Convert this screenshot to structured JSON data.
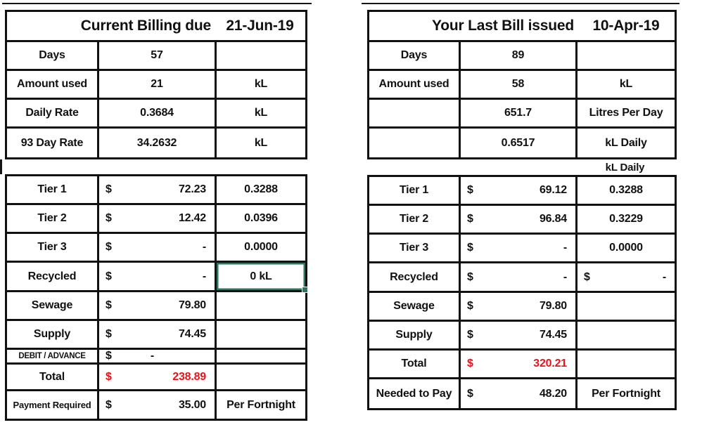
{
  "colors": {
    "text": "#111111",
    "red": "#e8131a",
    "selection_border": "#2f7360",
    "grid": "#111111"
  },
  "left_table": {
    "title": "Current Billing due",
    "date": "21-Jun-19",
    "info_rows": [
      {
        "label": "Days",
        "value": "57",
        "unit": ""
      },
      {
        "label": "Amount used",
        "value": "21",
        "unit": "kL"
      },
      {
        "label": "Daily Rate",
        "value": "0.3684",
        "unit": "kL"
      },
      {
        "label": "93 Day Rate",
        "value": "34.2632",
        "unit": "kL"
      }
    ],
    "charge_rows": [
      {
        "label": "Tier 1",
        "currency": "$",
        "amount": "72.23",
        "note": "0.3288"
      },
      {
        "label": "Tier 2",
        "currency": "$",
        "amount": "12.42",
        "note": "0.0396"
      },
      {
        "label": "Tier 3",
        "currency": "$",
        "amount": "-",
        "note": "0.0000"
      },
      {
        "label": "Recycled",
        "currency": "$",
        "amount": "-",
        "note": "0 kL",
        "selected": true,
        "row_h": "tall"
      },
      {
        "label": "Sewage",
        "currency": "$",
        "amount": "79.80",
        "note": ""
      },
      {
        "label": "Supply",
        "currency": "$",
        "amount": "74.45",
        "note": ""
      },
      {
        "label": "DEBIT / ADVANCE",
        "currency": "$",
        "amount": "-",
        "note": "",
        "label_size": "xs",
        "row_h": "short"
      },
      {
        "label": "Total",
        "currency": "$",
        "amount": "238.89",
        "note": "",
        "red": true,
        "row_h": "h38"
      },
      {
        "label": "Payment Required",
        "currency": "$",
        "amount": "35.00",
        "note": "Per Fortnight",
        "label_size": "sm",
        "row_h": "h39"
      }
    ]
  },
  "right_table": {
    "title": "Your Last Bill issued",
    "date": "10-Apr-19",
    "gap_label": "kL Daily",
    "info_rows": [
      {
        "label": "Days",
        "value": "89",
        "unit": ""
      },
      {
        "label": "Amount used",
        "value": "58",
        "unit": "kL"
      },
      {
        "label": "",
        "value": "651.7",
        "unit": "Litres Per Day"
      },
      {
        "label": "",
        "value": "0.6517",
        "unit": "kL Daily"
      }
    ],
    "charge_rows": [
      {
        "label": "Tier 1",
        "currency": "$",
        "amount": "69.12",
        "note": "0.3288"
      },
      {
        "label": "Tier 2",
        "currency": "$",
        "amount": "96.84",
        "note": "0.3229"
      },
      {
        "label": "Tier 3",
        "currency": "$",
        "amount": "-",
        "note": "0.0000"
      },
      {
        "label": "Recycled",
        "currency": "$",
        "amount": "-",
        "note_currency": "$",
        "note_amount": "-",
        "row_h": "tall"
      },
      {
        "label": "Sewage",
        "currency": "$",
        "amount": "79.80",
        "note": ""
      },
      {
        "label": "Supply",
        "currency": "$",
        "amount": "74.45",
        "note": ""
      },
      {
        "label": "Total",
        "currency": "$",
        "amount": "320.21",
        "note": "",
        "red": true
      },
      {
        "label": "Needed to Pay",
        "currency": "$",
        "amount": "48.20",
        "note": "Per Fortnight"
      }
    ]
  }
}
